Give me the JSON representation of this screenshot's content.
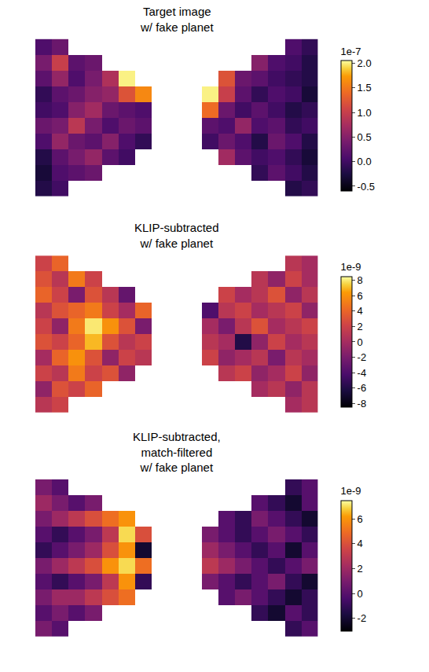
{
  "chart_data": [
    {
      "type": "heatmap",
      "title": "Target image\nw/ fake planet",
      "tick_labels": false,
      "colorbar_title": "1e-7",
      "zlim": [
        -6e-08,
        2.05e-07
      ],
      "zticks": [
        {
          "value": -5e-08,
          "label": "-0.5"
        },
        {
          "value": 0,
          "label": "0.0"
        },
        {
          "value": 5e-08,
          "label": "0.5"
        },
        {
          "value": 1e-07,
          "label": "1.0"
        },
        {
          "value": 1.5e-07,
          "label": "1.5"
        },
        {
          "value": 2e-07,
          "label": "2.0"
        }
      ],
      "z": [
        [
          1e-08,
          3e-08,
          null,
          null,
          null,
          null,
          null,
          null,
          null,
          null,
          null,
          null,
          null,
          null,
          null,
          1e-08,
          -1e-08
        ],
        [
          4e-08,
          1e-07,
          2e-08,
          3e-08,
          null,
          null,
          null,
          null,
          null,
          null,
          null,
          null,
          null,
          5e-08,
          1e-08,
          0.0,
          -2e-08
        ],
        [
          2e-08,
          6e-08,
          1e-08,
          4e-08,
          8e-08,
          2e-07,
          null,
          null,
          null,
          null,
          null,
          1.2e-07,
          3e-08,
          2e-08,
          0.0,
          -1e-08,
          -2e-08
        ],
        [
          -1e-08,
          2e-08,
          3e-08,
          5e-08,
          6e-08,
          1.2e-07,
          1.6e-07,
          null,
          null,
          null,
          2e-07,
          1e-07,
          2e-08,
          -1e-08,
          1e-08,
          0.0,
          -3e-08
        ],
        [
          0.0,
          1e-08,
          5e-08,
          7e-08,
          3e-08,
          2e-08,
          1e-08,
          null,
          null,
          null,
          1.4e-07,
          3e-08,
          0.0,
          2e-08,
          0.0,
          -2e-08,
          -1e-08
        ],
        [
          3e-08,
          4e-08,
          9e-08,
          4e-08,
          1e-08,
          3e-08,
          2e-08,
          null,
          null,
          null,
          2e-08,
          1e-08,
          6e-08,
          1e-08,
          2e-08,
          -1e-08,
          0.0
        ],
        [
          1e-08,
          6e-08,
          3e-08,
          2e-08,
          5e-08,
          1e-08,
          -1e-08,
          null,
          null,
          null,
          0.0,
          3e-08,
          1e-08,
          -2e-08,
          3e-08,
          1e-08,
          -2e-08
        ],
        [
          -2e-08,
          2e-08,
          4e-08,
          6e-08,
          2e-08,
          0.0,
          null,
          null,
          null,
          null,
          null,
          7e-08,
          2e-08,
          0.0,
          1e-08,
          -1e-08,
          -3e-08
        ],
        [
          -3e-08,
          1e-08,
          2e-08,
          3e-08,
          null,
          null,
          null,
          null,
          null,
          null,
          null,
          null,
          null,
          -1e-08,
          2e-08,
          0.0,
          -2e-08
        ],
        [
          -2e-08,
          0.0,
          null,
          null,
          null,
          null,
          null,
          null,
          null,
          null,
          null,
          null,
          null,
          null,
          null,
          -2e-08,
          -1e-08
        ]
      ]
    },
    {
      "type": "heatmap",
      "title": "KLIP-subtracted\nw/ fake planet",
      "tick_labels": false,
      "colorbar_title": "1e-9",
      "zlim": [
        -8.5e-09,
        8.5e-09
      ],
      "zticks": [
        {
          "value": -8e-09,
          "label": "-8"
        },
        {
          "value": -6e-09,
          "label": "-6"
        },
        {
          "value": -4e-09,
          "label": "-4"
        },
        {
          "value": -2e-09,
          "label": "-2"
        },
        {
          "value": 0,
          "label": "0"
        },
        {
          "value": 2e-09,
          "label": "2"
        },
        {
          "value": 4e-09,
          "label": "4"
        },
        {
          "value": 6e-09,
          "label": "6"
        },
        {
          "value": 8e-09,
          "label": "8"
        }
      ],
      "z": [
        [
          2e-09,
          4e-09,
          null,
          null,
          null,
          null,
          null,
          null,
          null,
          null,
          null,
          null,
          null,
          null,
          null,
          1e-09,
          0
        ],
        [
          3e-09,
          1e-09,
          5e-09,
          2e-09,
          null,
          null,
          null,
          null,
          null,
          null,
          null,
          null,
          null,
          1e-09,
          -1e-09,
          2e-09,
          0
        ],
        [
          4e-09,
          2e-09,
          -2e-09,
          3e-09,
          1e-09,
          -3e-09,
          null,
          null,
          null,
          null,
          null,
          2e-09,
          0,
          1e-09,
          3e-09,
          -1e-09,
          1e-09
        ],
        [
          1e-09,
          3e-09,
          4e-09,
          5e-09,
          2e-09,
          0,
          4e-09,
          null,
          null,
          null,
          -4e-09,
          1e-09,
          2e-09,
          0,
          1e-09,
          2e-09,
          -1e-09
        ],
        [
          2e-09,
          -1e-09,
          5e-09,
          8e-09,
          6e-09,
          3e-09,
          -2e-09,
          null,
          null,
          null,
          0,
          -2e-09,
          1e-09,
          3e-09,
          0,
          1e-09,
          2e-09
        ],
        [
          3e-09,
          2e-09,
          4e-09,
          7e-09,
          3e-09,
          1e-09,
          2e-09,
          null,
          null,
          null,
          1e-09,
          0,
          -6e-09,
          -1e-09,
          2e-09,
          0,
          1e-09
        ],
        [
          0,
          4e-09,
          6e-09,
          3e-09,
          -1e-09,
          2e-09,
          1e-09,
          null,
          null,
          null,
          2e-09,
          -1e-09,
          0,
          1e-09,
          -2e-09,
          1e-09,
          0
        ],
        [
          2e-09,
          1e-09,
          5e-09,
          2e-09,
          3e-09,
          -1e-09,
          null,
          null,
          null,
          null,
          null,
          1e-09,
          2e-09,
          -1e-09,
          0,
          2e-09,
          -1e-09
        ],
        [
          -1e-09,
          3e-09,
          2e-09,
          4e-09,
          null,
          null,
          null,
          null,
          null,
          null,
          null,
          null,
          null,
          0,
          1e-09,
          -1e-09,
          1e-09
        ],
        [
          1e-09,
          2e-09,
          null,
          null,
          null,
          null,
          null,
          null,
          null,
          null,
          null,
          null,
          null,
          null,
          null,
          0,
          1e-09
        ]
      ]
    },
    {
      "type": "heatmap",
      "title": "KLIP-subtracted,\nmatch-filtered\nw/ fake planet",
      "tick_labels": false,
      "colorbar_title": "1e-9",
      "zlim": [
        -3e-09,
        7.5e-09
      ],
      "zticks": [
        {
          "value": -2e-09,
          "label": "-2"
        },
        {
          "value": 0,
          "label": "0"
        },
        {
          "value": 2e-09,
          "label": "2"
        },
        {
          "value": 4e-09,
          "label": "4"
        },
        {
          "value": 6e-09,
          "label": "6"
        }
      ],
      "z": [
        [
          1e-09,
          0,
          null,
          null,
          null,
          null,
          null,
          null,
          null,
          null,
          null,
          null,
          null,
          null,
          null,
          -1e-09,
          0
        ],
        [
          2e-09,
          1e-09,
          0,
          1e-09,
          null,
          null,
          null,
          null,
          null,
          null,
          null,
          null,
          null,
          0,
          -1e-09,
          -2e-09,
          0
        ],
        [
          1e-09,
          2e-09,
          3e-09,
          4e-09,
          5e-09,
          6e-09,
          null,
          null,
          null,
          null,
          null,
          0,
          -1e-09,
          1e-09,
          0,
          -1e-09,
          -2e-09
        ],
        [
          0,
          -1e-09,
          0,
          1e-09,
          3e-09,
          7e-09,
          4e-09,
          null,
          null,
          null,
          1e-09,
          0,
          -1e-09,
          0,
          1e-09,
          0,
          -1e-09
        ],
        [
          -1e-09,
          0,
          1e-09,
          2e-09,
          4e-09,
          6e-09,
          -2e-09,
          null,
          null,
          null,
          2e-09,
          1e-09,
          0,
          -1e-09,
          0,
          -2e-09,
          0
        ],
        [
          1e-09,
          2e-09,
          3e-09,
          4e-09,
          6e-09,
          7e-09,
          5e-09,
          null,
          null,
          null,
          3e-09,
          2e-09,
          1e-09,
          0,
          -1e-09,
          0,
          1e-09
        ],
        [
          0,
          -1e-09,
          0,
          1e-09,
          3e-09,
          6e-09,
          -1e-09,
          null,
          null,
          null,
          1e-09,
          0,
          -1e-09,
          0,
          1e-09,
          -1e-09,
          -2e-09
        ],
        [
          1e-09,
          2e-09,
          2e-09,
          3e-09,
          4e-09,
          5e-09,
          null,
          null,
          null,
          null,
          null,
          0,
          1e-09,
          0,
          -1e-09,
          -2e-09,
          -1e-09
        ],
        [
          0,
          1e-09,
          0,
          1e-09,
          null,
          null,
          null,
          null,
          null,
          null,
          null,
          null,
          null,
          -1e-09,
          -2e-09,
          0,
          -1e-09
        ],
        [
          1e-09,
          0,
          null,
          null,
          null,
          null,
          null,
          null,
          null,
          null,
          null,
          null,
          null,
          null,
          null,
          -1e-09,
          0
        ]
      ]
    }
  ]
}
